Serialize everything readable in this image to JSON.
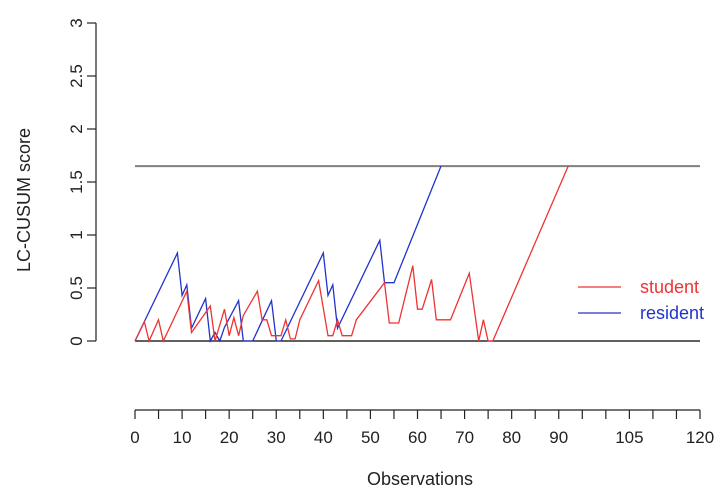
{
  "chart_data": {
    "type": "line",
    "xlabel": "Observations",
    "ylabel": "LC-CUSUM score",
    "xlim": [
      0,
      120
    ],
    "ylim": [
      0,
      3
    ],
    "x_ticks": [
      0,
      10,
      20,
      30,
      40,
      50,
      60,
      70,
      80,
      90,
      105,
      120
    ],
    "x_minor_ticks": [
      5,
      15,
      25,
      35,
      45,
      55,
      65,
      75,
      85,
      95,
      100,
      110,
      115
    ],
    "y_ticks": [
      0,
      0.5,
      1,
      1.5,
      2,
      2.5,
      3
    ],
    "y_tick_labels": [
      "0",
      "0.5",
      "1",
      "1.5",
      "2",
      "2.5",
      "3"
    ],
    "threshold": {
      "value": 1.65,
      "color": "#808080"
    },
    "baseline": {
      "value": 0,
      "color": "#000000"
    },
    "legend": {
      "position": "right"
    },
    "series": [
      {
        "name": "student",
        "color": "#ee3333",
        "x": [
          0,
          2,
          3,
          5,
          6,
          11,
          12,
          16,
          17,
          19,
          20,
          21,
          22,
          23,
          26,
          27,
          28,
          29,
          31,
          32,
          33,
          34,
          35,
          39,
          41,
          42,
          43,
          44,
          46,
          47,
          53,
          54,
          55,
          56,
          59,
          60,
          61,
          63,
          64,
          66,
          67,
          71,
          73,
          74,
          75,
          76,
          92
        ],
        "y": [
          0,
          0.18,
          0,
          0.2,
          0,
          0.47,
          0.08,
          0.33,
          0,
          0.3,
          0.05,
          0.22,
          0.05,
          0.24,
          0.47,
          0.2,
          0.2,
          0.05,
          0.05,
          0.2,
          0.02,
          0.02,
          0.2,
          0.57,
          0.05,
          0.05,
          0.2,
          0.05,
          0.05,
          0.2,
          0.55,
          0.17,
          0.17,
          0.17,
          0.71,
          0.3,
          0.3,
          0.58,
          0.2,
          0.2,
          0.2,
          0.64,
          0,
          0.2,
          0,
          0,
          1.65
        ]
      },
      {
        "name": "resident",
        "color": "#2233cc",
        "x": [
          0,
          9,
          10,
          11,
          12,
          15,
          16,
          17,
          18,
          19,
          22,
          23,
          24,
          25,
          29,
          30,
          31,
          40,
          41,
          42,
          43,
          52,
          53,
          54,
          55,
          65
        ],
        "y": [
          0,
          0.83,
          0.43,
          0.53,
          0.12,
          0.4,
          0,
          0.08,
          0,
          0.13,
          0.38,
          0,
          0,
          0,
          0.38,
          0,
          0,
          0.83,
          0.43,
          0.53,
          0.12,
          0.95,
          0.55,
          0.55,
          0.55,
          1.65
        ]
      }
    ]
  }
}
